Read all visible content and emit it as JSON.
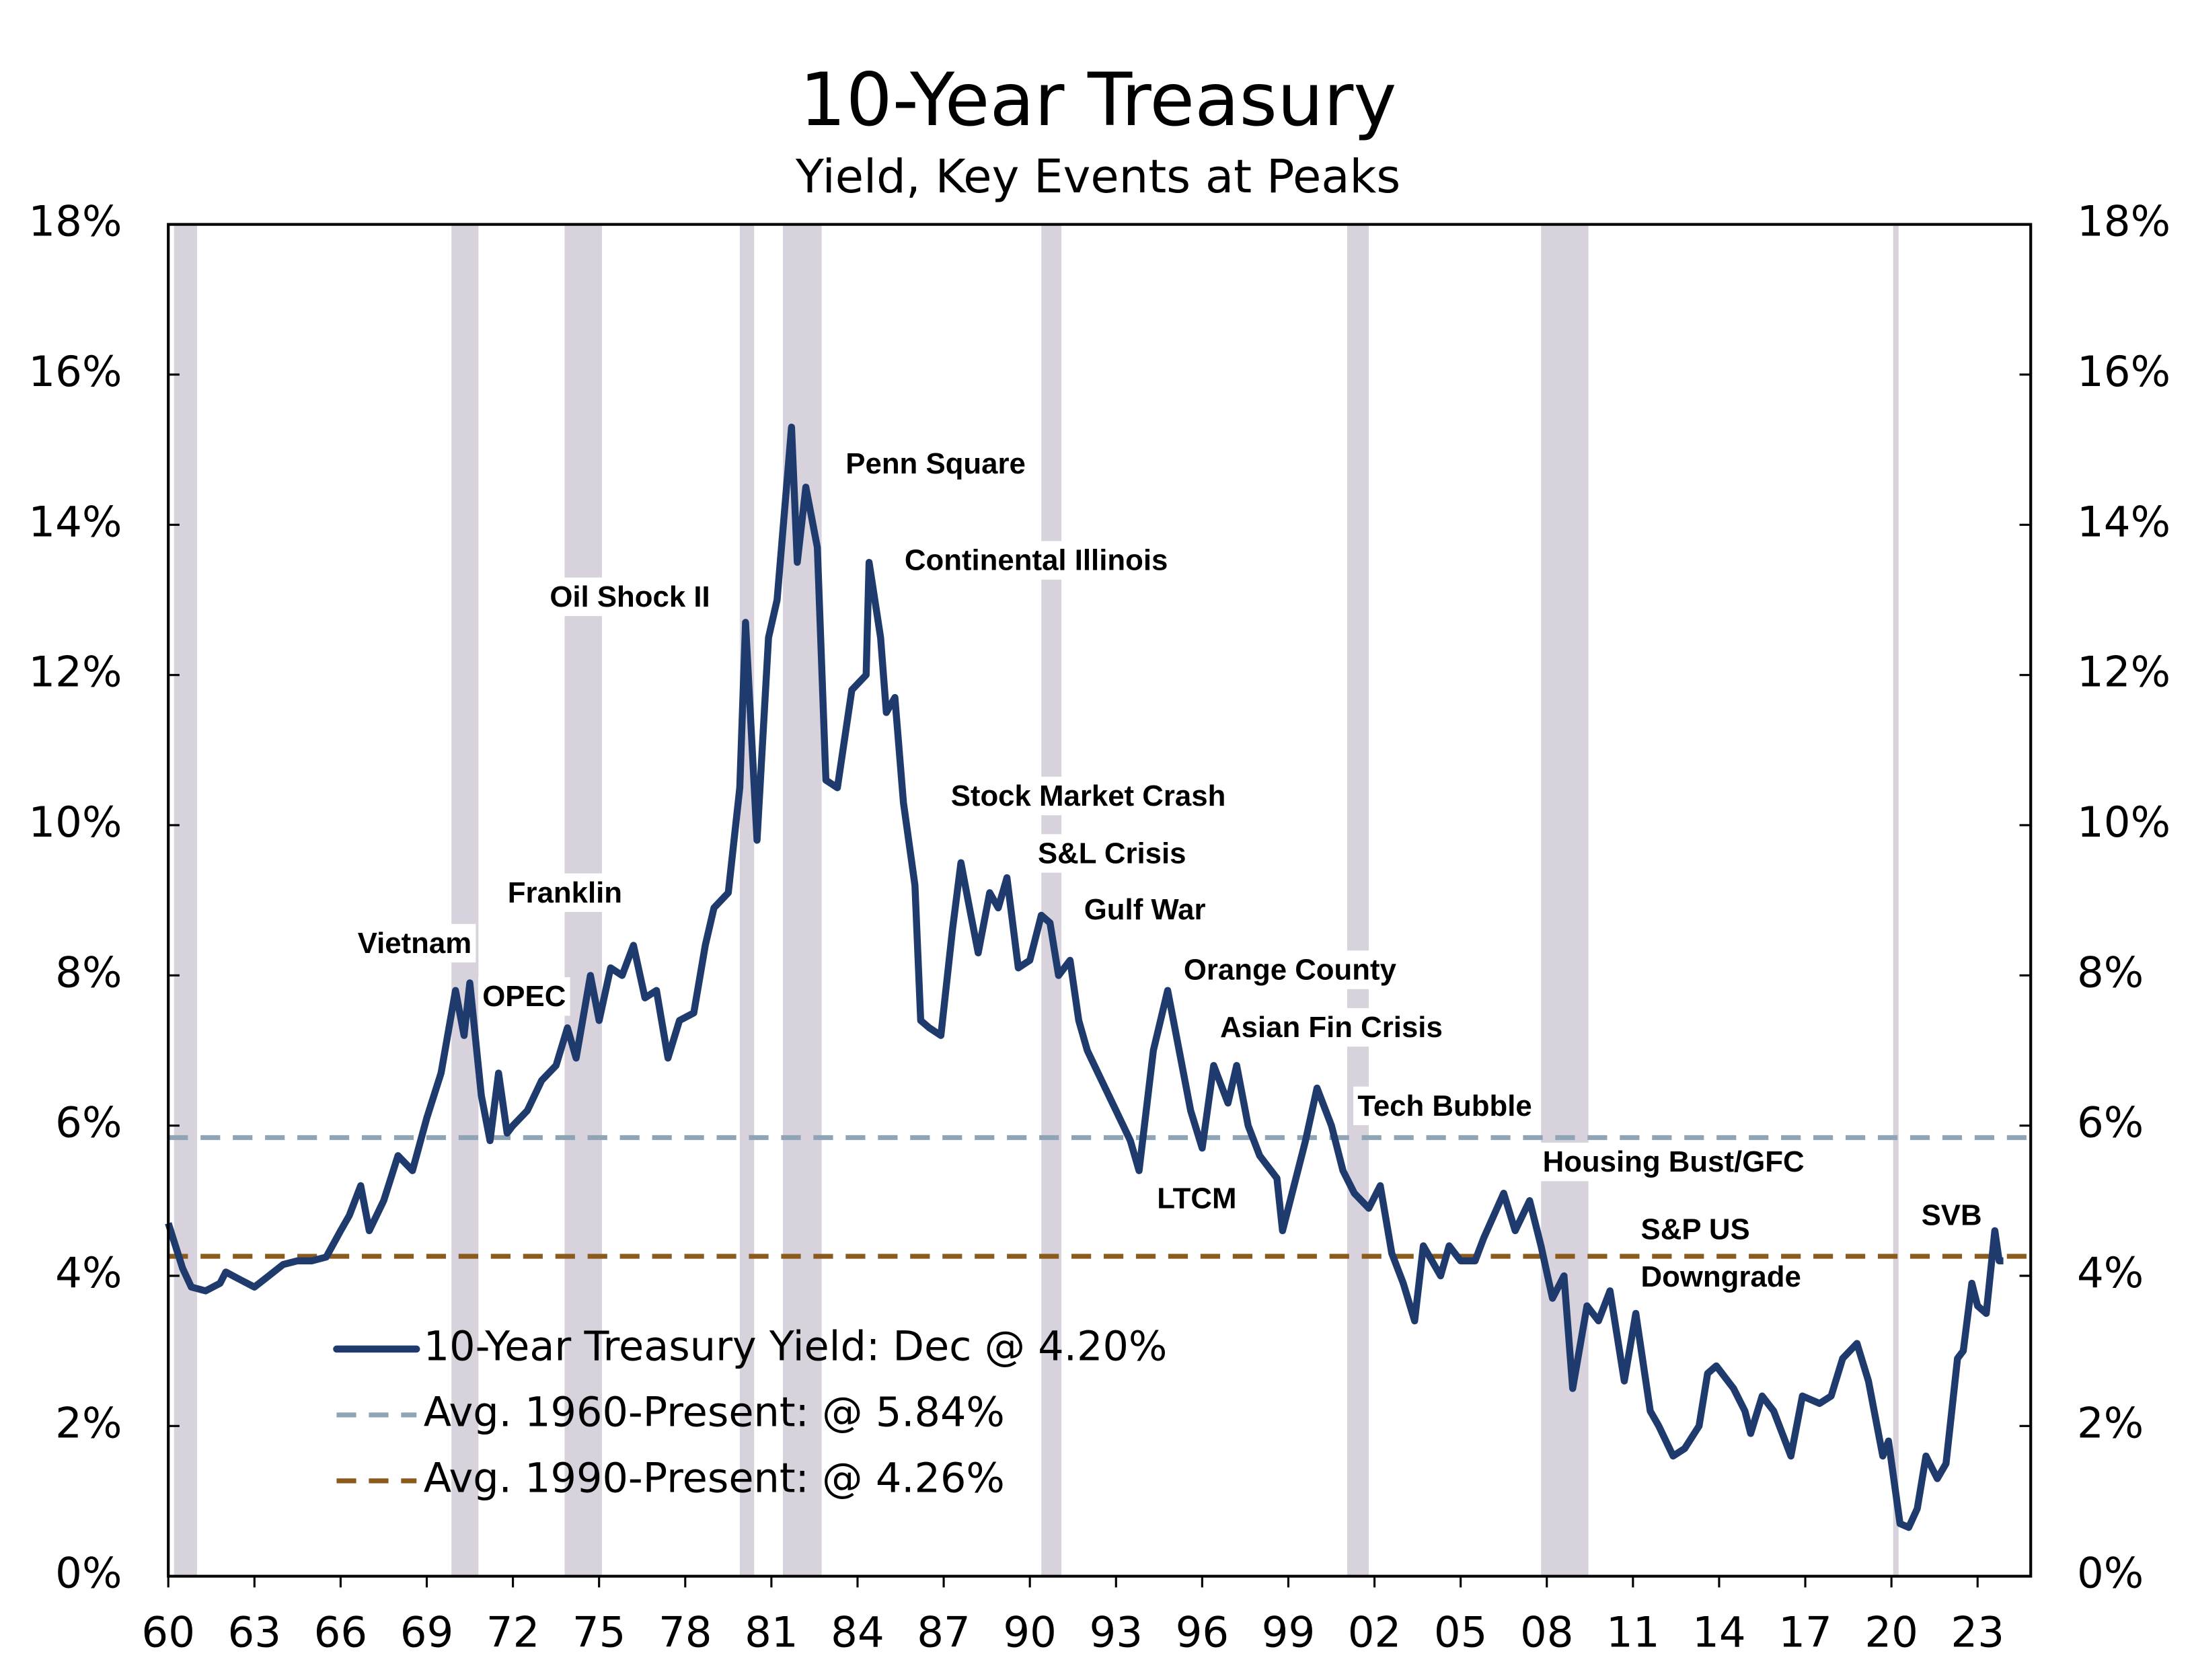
{
  "chart_data": {
    "type": "line",
    "title": "10-Year Treasury",
    "subtitle": "Yield, Key Events at Peaks",
    "x": [
      1960.0,
      1960.5,
      1960.8,
      1961.3,
      1961.8,
      1962.0,
      1962.5,
      1963.0,
      1963.5,
      1964.0,
      1964.5,
      1965.0,
      1965.5,
      1966.0,
      1966.3,
      1966.7,
      1967.0,
      1967.5,
      1968.0,
      1968.5,
      1969.0,
      1969.5,
      1970.0,
      1970.3,
      1970.5,
      1970.9,
      1971.2,
      1971.5,
      1971.8,
      1972.0,
      1972.5,
      1973.0,
      1973.5,
      1973.9,
      1974.2,
      1974.7,
      1975.0,
      1975.4,
      1975.8,
      1976.2,
      1976.6,
      1977.0,
      1977.4,
      1977.8,
      1978.3,
      1978.7,
      1979.0,
      1979.5,
      1979.9,
      1980.1,
      1980.5,
      1980.9,
      1981.2,
      1981.7,
      1981.9,
      1982.2,
      1982.6,
      1982.9,
      1983.3,
      1983.8,
      1984.3,
      1984.4,
      1984.8,
      1985.0,
      1985.3,
      1985.6,
      1986.0,
      1986.2,
      1986.5,
      1986.9,
      1987.3,
      1987.6,
      1987.9,
      1988.2,
      1988.6,
      1988.9,
      1989.2,
      1989.6,
      1990.0,
      1990.4,
      1990.7,
      1991.0,
      1991.4,
      1991.7,
      1992.0,
      1992.5,
      1993.0,
      1993.5,
      1993.8,
      1994.3,
      1994.8,
      1995.2,
      1995.6,
      1996.0,
      1996.4,
      1996.9,
      1997.2,
      1997.6,
      1998.0,
      1998.6,
      1998.8,
      1999.2,
      1999.6,
      2000.0,
      2000.5,
      2000.9,
      2001.3,
      2001.8,
      2002.2,
      2002.6,
      2003.0,
      2003.4,
      2003.7,
      2004.3,
      2004.6,
      2005.0,
      2005.5,
      2005.8,
      2006.5,
      2006.9,
      2007.4,
      2007.8,
      2008.2,
      2008.6,
      2008.9,
      2009.4,
      2009.8,
      2010.2,
      2010.7,
      2011.1,
      2011.6,
      2011.9,
      2012.4,
      2012.8,
      2013.3,
      2013.6,
      2013.9,
      2014.5,
      2014.9,
      2015.1,
      2015.5,
      2015.9,
      2016.5,
      2016.9,
      2017.5,
      2017.9,
      2018.3,
      2018.8,
      2019.2,
      2019.7,
      2019.9,
      2020.3,
      2020.6,
      2020.9,
      2021.2,
      2021.6,
      2021.9,
      2022.3,
      2022.5,
      2022.8,
      2023.0,
      2023.3,
      2023.6,
      2023.75,
      2023.9
    ],
    "series": [
      {
        "name": "10-Year Treasury Yield: Dec @ 4.20%",
        "color": "#1f3b6e",
        "values": [
          4.7,
          4.1,
          3.85,
          3.8,
          3.9,
          4.05,
          3.95,
          3.85,
          4.0,
          4.15,
          4.2,
          4.2,
          4.25,
          4.6,
          4.8,
          5.2,
          4.6,
          5.0,
          5.6,
          5.4,
          6.1,
          6.7,
          7.8,
          7.2,
          7.9,
          6.4,
          5.8,
          6.7,
          5.9,
          6.0,
          6.2,
          6.6,
          6.8,
          7.3,
          6.9,
          8.0,
          7.4,
          8.1,
          8.0,
          8.4,
          7.7,
          7.8,
          6.9,
          7.4,
          7.5,
          8.4,
          8.9,
          9.1,
          10.5,
          12.7,
          9.8,
          12.5,
          13.0,
          15.3,
          13.5,
          14.5,
          13.7,
          10.6,
          10.5,
          11.8,
          12.0,
          13.5,
          12.5,
          11.5,
          11.7,
          10.3,
          9.2,
          7.4,
          7.3,
          7.2,
          8.6,
          9.5,
          8.9,
          8.3,
          9.1,
          8.9,
          9.3,
          8.1,
          8.2,
          8.8,
          8.7,
          8.0,
          8.2,
          7.4,
          7.0,
          6.6,
          6.2,
          5.8,
          5.4,
          7.0,
          7.8,
          7.0,
          6.2,
          5.7,
          6.8,
          6.3,
          6.8,
          6.0,
          5.6,
          5.3,
          4.6,
          5.2,
          5.8,
          6.5,
          6.0,
          5.4,
          5.1,
          4.9,
          5.2,
          4.3,
          3.9,
          3.4,
          4.4,
          4.0,
          4.4,
          4.2,
          4.2,
          4.5,
          5.1,
          4.6,
          5.0,
          4.4,
          3.7,
          4.0,
          2.5,
          3.6,
          3.4,
          3.8,
          2.6,
          3.5,
          2.2,
          2.0,
          1.6,
          1.7,
          2.0,
          2.7,
          2.8,
          2.5,
          2.2,
          1.9,
          2.4,
          2.2,
          1.6,
          2.4,
          2.3,
          2.4,
          2.9,
          3.1,
          2.6,
          1.6,
          1.8,
          0.7,
          0.65,
          0.9,
          1.6,
          1.3,
          1.5,
          2.9,
          3.0,
          3.9,
          3.6,
          3.5,
          4.6,
          4.2,
          4.2
        ]
      }
    ],
    "reference_lines": [
      {
        "name": "Avg. 1960-Present: @ 5.84%",
        "value": 5.84,
        "color": "#8fa5b5"
      },
      {
        "name": "Avg. 1990-Present: @ 4.26%",
        "value": 4.26,
        "color": "#8b5a1e"
      }
    ],
    "recessions": [
      [
        1960.2,
        1961.0
      ],
      [
        1969.86,
        1970.8
      ],
      [
        1973.8,
        1975.1
      ],
      [
        1979.9,
        1980.4
      ],
      [
        1981.4,
        1982.75
      ],
      [
        1990.4,
        1991.1
      ],
      [
        2001.05,
        2001.8
      ],
      [
        2007.8,
        2009.45
      ],
      [
        2020.06,
        2020.25
      ]
    ],
    "recession_color": "#d7d2db",
    "annotations": [
      "Vietnam",
      "OPEC",
      "Franklin",
      "Oil Shock II",
      "Penn Square",
      "Continental Illinois",
      "Stock Market Crash",
      "S&L Crisis",
      "Gulf War",
      "Orange County",
      "Asian Fin Crisis",
      "LTCM",
      "Tech Bubble",
      "Housing Bust/GFC",
      "S&P US",
      "Downgrade",
      "SVB"
    ],
    "xlim": [
      1960,
      2024.85
    ],
    "xticks": [
      {
        "value": 1960,
        "label": "60"
      },
      {
        "value": 1963,
        "label": "63"
      },
      {
        "value": 1966,
        "label": "66"
      },
      {
        "value": 1969,
        "label": "69"
      },
      {
        "value": 1972,
        "label": "72"
      },
      {
        "value": 1975,
        "label": "75"
      },
      {
        "value": 1978,
        "label": "78"
      },
      {
        "value": 1981,
        "label": "81"
      },
      {
        "value": 1984,
        "label": "84"
      },
      {
        "value": 1987,
        "label": "87"
      },
      {
        "value": 1990,
        "label": "90"
      },
      {
        "value": 1993,
        "label": "93"
      },
      {
        "value": 1996,
        "label": "96"
      },
      {
        "value": 1999,
        "label": "99"
      },
      {
        "value": 2002,
        "label": "02"
      },
      {
        "value": 2005,
        "label": "05"
      },
      {
        "value": 2008,
        "label": "08"
      },
      {
        "value": 2011,
        "label": "11"
      },
      {
        "value": 2014,
        "label": "14"
      },
      {
        "value": 2017,
        "label": "17"
      },
      {
        "value": 2020,
        "label": "20"
      },
      {
        "value": 2023,
        "label": "23"
      }
    ],
    "ylim": [
      0,
      18
    ],
    "yticks": [
      {
        "value": 0,
        "label": "0%"
      },
      {
        "value": 2,
        "label": "2%"
      },
      {
        "value": 4,
        "label": "4%"
      },
      {
        "value": 6,
        "label": "6%"
      },
      {
        "value": 8,
        "label": "8%"
      },
      {
        "value": 10,
        "label": "10%"
      },
      {
        "value": 12,
        "label": "12%"
      },
      {
        "value": 14,
        "label": "14%"
      },
      {
        "value": 16,
        "label": "16%"
      },
      {
        "value": 18,
        "label": "18%"
      }
    ],
    "y2lim": [
      0,
      18
    ],
    "y2ticks": [
      {
        "value": 0,
        "label": "0%"
      },
      {
        "value": 2,
        "label": "2%"
      },
      {
        "value": 4,
        "label": "4%"
      },
      {
        "value": 6,
        "label": "6%"
      },
      {
        "value": 8,
        "label": "8%"
      },
      {
        "value": 10,
        "label": "10%"
      },
      {
        "value": 12,
        "label": "12%"
      },
      {
        "value": 14,
        "label": "14%"
      },
      {
        "value": 16,
        "label": "16%"
      },
      {
        "value": 18,
        "label": "18%"
      }
    ]
  }
}
